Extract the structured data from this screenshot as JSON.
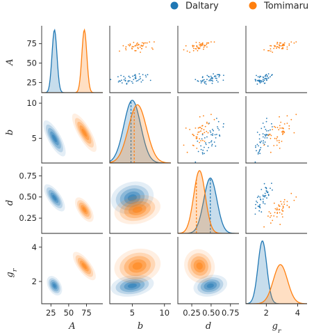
{
  "chart_data": {
    "type": "scatter",
    "kind": "pairplot",
    "variables": [
      "A",
      "b",
      "d",
      "g_r"
    ],
    "axis_labels": {
      "A": "A",
      "b": "b",
      "d": "d",
      "g_r": "g_r"
    },
    "axis_label_parts": {
      "g_r": {
        "base": "g",
        "sub": "r"
      }
    },
    "ranges": {
      "A": [
        12,
        98
      ],
      "b": [
        1.5,
        11
      ],
      "d": [
        0.07,
        0.86
      ],
      "g_r": [
        0.7,
        4.6
      ]
    },
    "ticks": {
      "A": [
        25,
        50,
        75
      ],
      "b": [
        5,
        10
      ],
      "d": [
        0.25,
        0.5,
        0.75
      ],
      "g_r": [
        2,
        4
      ]
    },
    "tick_labels": {
      "A_y": [
        "25",
        "50",
        "75"
      ],
      "A_x": [
        "25",
        "50",
        "75"
      ],
      "b": [
        "5",
        "10"
      ],
      "d_y": [
        "0.25",
        "0.50",
        "0.75"
      ],
      "d_x": [
        "0.25",
        "0.50",
        "0.75"
      ],
      "d_x_drawn": [
        "0.25",
        "0.50",
        "0.75"
      ],
      "g_r": [
        "2",
        "4"
      ]
    },
    "upper_triangle": "scatter",
    "lower_triangle": "kde (filled contours)",
    "diagonal": "kde (filled) with dashed median line",
    "legend": {
      "placement": "top"
    },
    "series": [
      {
        "name": "Daltary",
        "color": "#1f77b4",
        "means": {
          "A": 30,
          "b": 5.0,
          "d": 0.49,
          "g_r": 1.75
        },
        "sd": {
          "A": 3.5,
          "b": 1.3,
          "d": 0.085,
          "g_r": 0.28
        },
        "median": {
          "b": 4.8,
          "d": 0.49
        }
      },
      {
        "name": "Tomimaru",
        "color": "#ff7f0e",
        "means": {
          "A": 72,
          "b": 5.8,
          "d": 0.35,
          "g_r": 2.9
        },
        "sd": {
          "A": 3.5,
          "b": 1.4,
          "d": 0.075,
          "g_r": 0.45
        },
        "median": {
          "b": 5.3,
          "d": 0.31
        }
      }
    ]
  }
}
